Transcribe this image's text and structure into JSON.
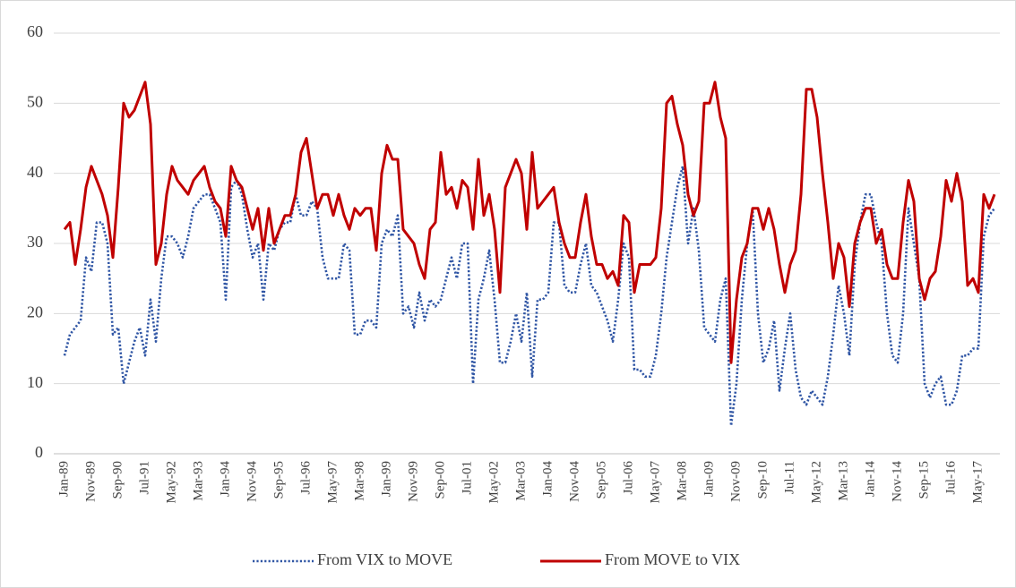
{
  "chart_data": {
    "type": "line",
    "categories": [
      "Jan-89",
      null,
      null,
      null,
      null,
      "Nov-89",
      null,
      null,
      null,
      null,
      "Sep-90",
      null,
      null,
      null,
      null,
      "Jul-91",
      null,
      null,
      null,
      null,
      "May-92",
      null,
      null,
      null,
      null,
      "Mar-93",
      null,
      null,
      null,
      null,
      "Jan-94",
      null,
      null,
      null,
      null,
      "Nov-94",
      null,
      null,
      null,
      null,
      "Sep-95",
      null,
      null,
      null,
      null,
      "Jul-96",
      null,
      null,
      null,
      null,
      "May-97",
      null,
      null,
      null,
      null,
      "Mar-98",
      null,
      null,
      null,
      null,
      "Jan-99",
      null,
      null,
      null,
      null,
      "Nov-99",
      null,
      null,
      null,
      null,
      "Sep-00",
      null,
      null,
      null,
      null,
      "Jul-01",
      null,
      null,
      null,
      null,
      "May-02",
      null,
      null,
      null,
      null,
      "Mar-03",
      null,
      null,
      null,
      null,
      "Jan-04",
      null,
      null,
      null,
      null,
      "Nov-04",
      null,
      null,
      null,
      null,
      "Sep-05",
      null,
      null,
      null,
      null,
      "Jul-06",
      null,
      null,
      null,
      null,
      "May-07",
      null,
      null,
      null,
      null,
      "Mar-08",
      null,
      null,
      null,
      null,
      "Jan-09",
      null,
      null,
      null,
      null,
      "Nov-09",
      null,
      null,
      null,
      null,
      "Sep-10",
      null,
      null,
      null,
      null,
      "Jul-11",
      null,
      null,
      null,
      null,
      "May-12",
      null,
      null,
      null,
      null,
      "Mar-13",
      null,
      null,
      null,
      null,
      "Jan-14",
      null,
      null,
      null,
      null,
      "Nov-14",
      null,
      null,
      null,
      null,
      "Sep-15",
      null,
      null,
      null,
      null,
      "Jul-16",
      null,
      null,
      null,
      null,
      "May-17",
      null,
      null,
      null
    ],
    "series": [
      {
        "name": "From VIX to MOVE",
        "color": "#2f55a4",
        "line_style": "dotted",
        "values": [
          14,
          17,
          18,
          19,
          28,
          26,
          33,
          33,
          30,
          17,
          18,
          10,
          13,
          16,
          18,
          14,
          22,
          16,
          25,
          31,
          31,
          30,
          28,
          31,
          35,
          36,
          37,
          37,
          35,
          33,
          22,
          38,
          39,
          37,
          32,
          28,
          30,
          22,
          30,
          29,
          32,
          33,
          33,
          37,
          34,
          34,
          36,
          35,
          28,
          25,
          25,
          25,
          30,
          29,
          17,
          17,
          19,
          19,
          18,
          30,
          32,
          31,
          34,
          20,
          21,
          18,
          23,
          19,
          22,
          21,
          22,
          25,
          28,
          25,
          30,
          30,
          10,
          22,
          25,
          29,
          22,
          13,
          13,
          16,
          20,
          16,
          23,
          11,
          22,
          22,
          23,
          33,
          33,
          24,
          23,
          23,
          27,
          30,
          24,
          23,
          21,
          19,
          16,
          22,
          30,
          28,
          12,
          12,
          11,
          11,
          14,
          20,
          28,
          33,
          38,
          41,
          30,
          35,
          29,
          18,
          17,
          16,
          22,
          25,
          4,
          10,
          22,
          30,
          35,
          20,
          13,
          15,
          19,
          9,
          15,
          20,
          12,
          8,
          7,
          9,
          8,
          7,
          11,
          17,
          24,
          20,
          14,
          27,
          33,
          37,
          37,
          33,
          30,
          20,
          14,
          13,
          20,
          35,
          30,
          25,
          10,
          8,
          10,
          11,
          7,
          7,
          9,
          14,
          14,
          15,
          15,
          31,
          34,
          35
        ]
      },
      {
        "name": "From MOVE to VIX",
        "color": "#c00000",
        "line_style": "solid",
        "values": [
          32,
          33,
          27,
          32,
          38,
          41,
          39,
          37,
          34,
          28,
          38,
          50,
          48,
          49,
          51,
          53,
          47,
          27,
          30,
          37,
          41,
          39,
          38,
          37,
          39,
          40,
          41,
          38,
          36,
          35,
          31,
          41,
          39,
          38,
          35,
          32,
          35,
          29,
          35,
          30,
          32,
          34,
          34,
          37,
          43,
          45,
          40,
          35,
          37,
          37,
          34,
          37,
          34,
          32,
          35,
          34,
          35,
          35,
          29,
          40,
          44,
          42,
          42,
          32,
          31,
          30,
          27,
          25,
          32,
          33,
          43,
          37,
          38,
          35,
          39,
          38,
          32,
          42,
          34,
          37,
          32,
          23,
          38,
          40,
          42,
          40,
          32,
          43,
          35,
          36,
          37,
          38,
          33,
          30,
          28,
          28,
          33,
          37,
          31,
          27,
          27,
          25,
          26,
          24,
          34,
          33,
          23,
          27,
          27,
          27,
          28,
          35,
          50,
          51,
          47,
          44,
          37,
          34,
          36,
          50,
          50,
          53,
          48,
          45,
          13,
          22,
          28,
          30,
          35,
          35,
          32,
          35,
          32,
          27,
          23,
          27,
          29,
          37,
          52,
          52,
          48,
          40,
          33,
          25,
          30,
          28,
          21,
          30,
          33,
          35,
          35,
          30,
          32,
          27,
          25,
          25,
          33,
          39,
          36,
          25,
          22,
          25,
          26,
          31,
          39,
          36,
          40,
          36,
          24,
          25,
          23,
          37,
          35,
          37
        ]
      }
    ],
    "ylim": [
      0,
      60
    ],
    "yticks": [
      0,
      10,
      20,
      30,
      40,
      50,
      60
    ],
    "grid": true,
    "legend": "bottom"
  }
}
